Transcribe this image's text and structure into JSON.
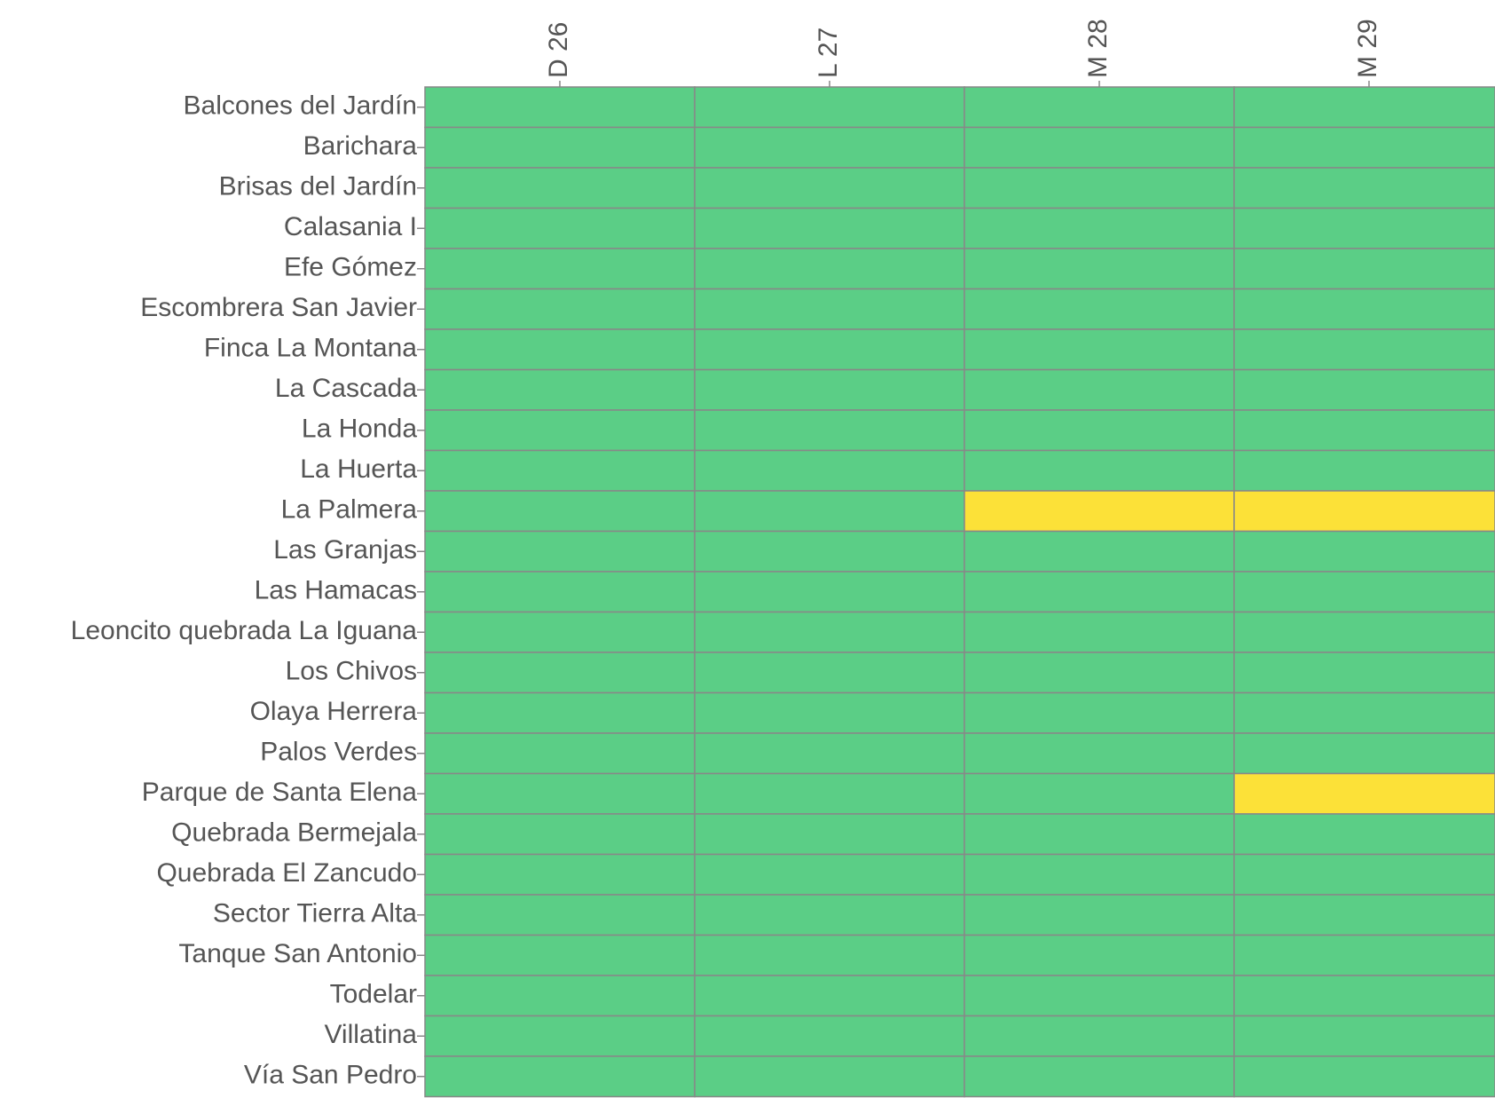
{
  "chart_data": {
    "type": "heatmap",
    "x": [
      "D 26",
      "L 27",
      "M 28",
      "M 29"
    ],
    "y": [
      "Balcones del Jardín",
      "Barichara",
      "Brisas del Jardín",
      "Calasania I",
      "Efe Gómez",
      "Escombrera San Javier",
      "Finca La Montana",
      "La Cascada",
      "La Honda",
      "La Huerta",
      "La Palmera",
      "Las Granjas",
      "Las Hamacas",
      "Leoncito quebrada La Iguana",
      "Los Chivos",
      "Olaya Herrera",
      "Palos Verdes",
      "Parque de Santa Elena",
      "Quebrada Bermejala",
      "Quebrada El Zancudo",
      "Sector Tierra Alta",
      "Tanque San Antonio",
      "Todelar",
      "Villatina",
      "Vía San Pedro"
    ],
    "values": [
      [
        0,
        0,
        0,
        0
      ],
      [
        0,
        0,
        0,
        0
      ],
      [
        0,
        0,
        0,
        0
      ],
      [
        0,
        0,
        0,
        0
      ],
      [
        0,
        0,
        0,
        0
      ],
      [
        0,
        0,
        0,
        0
      ],
      [
        0,
        0,
        0,
        0
      ],
      [
        0,
        0,
        0,
        0
      ],
      [
        0,
        0,
        0,
        0
      ],
      [
        0,
        0,
        0,
        0
      ],
      [
        0,
        0,
        1,
        1
      ],
      [
        0,
        0,
        0,
        0
      ],
      [
        0,
        0,
        0,
        0
      ],
      [
        0,
        0,
        0,
        0
      ],
      [
        0,
        0,
        0,
        0
      ],
      [
        0,
        0,
        0,
        0
      ],
      [
        0,
        0,
        0,
        0
      ],
      [
        0,
        0,
        0,
        1
      ],
      [
        0,
        0,
        0,
        0
      ],
      [
        0,
        0,
        0,
        0
      ],
      [
        0,
        0,
        0,
        0
      ],
      [
        0,
        0,
        0,
        0
      ],
      [
        0,
        0,
        0,
        0
      ],
      [
        0,
        0,
        0,
        0
      ],
      [
        0,
        0,
        0,
        0
      ]
    ],
    "colors": [
      "#5bce86",
      "#fce138"
    ]
  }
}
